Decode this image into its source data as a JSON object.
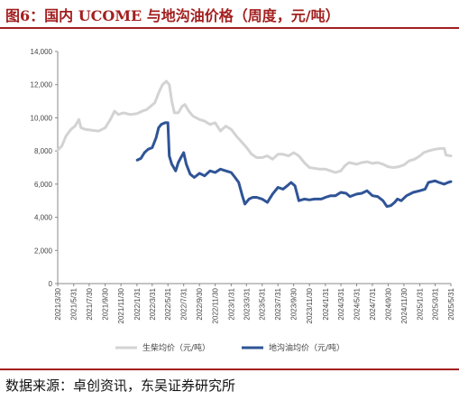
{
  "header": {
    "title": "图6：国内 UCOME 与地沟油价格（周度，元/吨）"
  },
  "footer": {
    "source": "数据来源：卓创资讯，东吴证券研究所"
  },
  "chart_data": {
    "type": "line",
    "title": "图6：国内 UCOME 与地沟油价格（周度，元/吨）",
    "xlabel": "",
    "ylabel": "",
    "ylim": [
      0,
      14000
    ],
    "y_ticks": [
      0,
      2000,
      4000,
      6000,
      8000,
      10000,
      12000,
      14000
    ],
    "y_tick_labels": [
      "0",
      "2,000",
      "4,000",
      "6,000",
      "8,000",
      "10,000",
      "12,000",
      "14,000"
    ],
    "x_range": [
      "2021-03-30",
      "2025-05-31"
    ],
    "x_ticks": [
      "2021-03-30",
      "2021-05-31",
      "2021-07-30",
      "2021-09-30",
      "2021-11-30",
      "2022-01-31",
      "2022-03-31",
      "2022-05-31",
      "2022-07-31",
      "2022-09-30",
      "2022-11-30",
      "2023-01-31",
      "2023-03-31",
      "2023-05-31",
      "2023-07-31",
      "2023-09-30",
      "2023-11-30",
      "2024-01-31",
      "2024-03-31",
      "2024-05-31",
      "2024-07-31",
      "2024-09-30",
      "2024-11-30",
      "2025-01-31",
      "2025-03-31",
      "2025-05-31"
    ],
    "x_tick_labels": [
      "2021/3/30",
      "2021/5/31",
      "2021/7/30",
      "2021/9/30",
      "2021/11/30",
      "2022/1/31",
      "2022/3/31",
      "2022/5/31",
      "2022/7/31",
      "2022/9/30",
      "2022/11/30",
      "2023/1/31",
      "2023/3/31",
      "2023/5/31",
      "2023/7/31",
      "2023/9/30",
      "2023/11/30",
      "2024/1/31",
      "2024/3/31",
      "2024/5/31",
      "2024/7/31",
      "2024/9/30",
      "2024/11/30",
      "2025/1/31",
      "2025/3/31",
      "2025/5/31"
    ],
    "grid": false,
    "legend_position": "bottom",
    "series": [
      {
        "name": "生柴均价（元/吨）",
        "color": "#d3d3d3",
        "points": [
          [
            "2021-03-30",
            8050
          ],
          [
            "2021-04-15",
            8300
          ],
          [
            "2021-05-01",
            8900
          ],
          [
            "2021-05-20",
            9300
          ],
          [
            "2021-06-05",
            9500
          ],
          [
            "2021-06-20",
            9900
          ],
          [
            "2021-06-28",
            9400
          ],
          [
            "2021-07-15",
            9300
          ],
          [
            "2021-08-10",
            9250
          ],
          [
            "2021-09-05",
            9200
          ],
          [
            "2021-09-30",
            9400
          ],
          [
            "2021-10-20",
            9900
          ],
          [
            "2021-11-05",
            10400
          ],
          [
            "2021-11-20",
            10200
          ],
          [
            "2021-12-10",
            10300
          ],
          [
            "2022-01-05",
            10200
          ],
          [
            "2022-01-31",
            10250
          ],
          [
            "2022-02-20",
            10400
          ],
          [
            "2022-03-10",
            10500
          ],
          [
            "2022-03-25",
            10700
          ],
          [
            "2022-04-10",
            10900
          ],
          [
            "2022-04-25",
            11500
          ],
          [
            "2022-05-10",
            12000
          ],
          [
            "2022-05-25",
            12200
          ],
          [
            "2022-06-05",
            12000
          ],
          [
            "2022-06-15",
            11000
          ],
          [
            "2022-06-25",
            10300
          ],
          [
            "2022-07-10",
            10300
          ],
          [
            "2022-07-25",
            10700
          ],
          [
            "2022-08-05",
            10800
          ],
          [
            "2022-08-20",
            10400
          ],
          [
            "2022-09-05",
            10100
          ],
          [
            "2022-09-30",
            9900
          ],
          [
            "2022-10-20",
            9800
          ],
          [
            "2022-11-10",
            9600
          ],
          [
            "2022-11-30",
            9700
          ],
          [
            "2022-12-20",
            9200
          ],
          [
            "2023-01-10",
            9500
          ],
          [
            "2023-01-31",
            9300
          ],
          [
            "2023-02-20",
            8900
          ],
          [
            "2023-03-15",
            8500
          ],
          [
            "2023-04-01",
            8200
          ],
          [
            "2023-04-20",
            7800
          ],
          [
            "2023-05-10",
            7600
          ],
          [
            "2023-05-31",
            7600
          ],
          [
            "2023-06-20",
            7700
          ],
          [
            "2023-07-10",
            7500
          ],
          [
            "2023-07-31",
            7800
          ],
          [
            "2023-08-20",
            7800
          ],
          [
            "2023-09-10",
            7700
          ],
          [
            "2023-09-30",
            7900
          ],
          [
            "2023-10-20",
            7700
          ],
          [
            "2023-11-10",
            7300
          ],
          [
            "2023-11-30",
            7000
          ],
          [
            "2023-12-20",
            6950
          ],
          [
            "2024-01-10",
            6900
          ],
          [
            "2024-01-31",
            6900
          ],
          [
            "2024-02-20",
            6800
          ],
          [
            "2024-03-10",
            6700
          ],
          [
            "2024-03-31",
            6800
          ],
          [
            "2024-04-15",
            7100
          ],
          [
            "2024-05-01",
            7300
          ],
          [
            "2024-05-31",
            7200
          ],
          [
            "2024-06-20",
            7300
          ],
          [
            "2024-07-10",
            7350
          ],
          [
            "2024-07-31",
            7250
          ],
          [
            "2024-08-20",
            7300
          ],
          [
            "2024-09-10",
            7200
          ],
          [
            "2024-09-30",
            7050
          ],
          [
            "2024-10-20",
            7000
          ],
          [
            "2024-11-10",
            7050
          ],
          [
            "2024-11-30",
            7150
          ],
          [
            "2024-12-20",
            7400
          ],
          [
            "2025-01-10",
            7500
          ],
          [
            "2025-01-31",
            7700
          ],
          [
            "2025-02-15",
            7900
          ],
          [
            "2025-03-05",
            8000
          ],
          [
            "2025-03-31",
            8100
          ],
          [
            "2025-04-20",
            8150
          ],
          [
            "2025-05-05",
            8150
          ],
          [
            "2025-05-12",
            7750
          ],
          [
            "2025-05-31",
            7700
          ]
        ]
      },
      {
        "name": "地沟油均价（元/吨）",
        "color": "#2f5496",
        "points": [
          [
            "2022-02-01",
            7450
          ],
          [
            "2022-02-15",
            7550
          ],
          [
            "2022-03-01",
            7900
          ],
          [
            "2022-03-15",
            8100
          ],
          [
            "2022-03-31",
            8200
          ],
          [
            "2022-04-15",
            8800
          ],
          [
            "2022-04-25",
            9400
          ],
          [
            "2022-05-05",
            9600
          ],
          [
            "2022-05-20",
            9700
          ],
          [
            "2022-05-31",
            9700
          ],
          [
            "2022-06-05",
            7700
          ],
          [
            "2022-06-15",
            7200
          ],
          [
            "2022-06-30",
            6800
          ],
          [
            "2022-07-10",
            7300
          ],
          [
            "2022-07-20",
            7600
          ],
          [
            "2022-07-31",
            7900
          ],
          [
            "2022-08-10",
            7200
          ],
          [
            "2022-08-25",
            6600
          ],
          [
            "2022-09-10",
            6400
          ],
          [
            "2022-09-30",
            6650
          ],
          [
            "2022-10-20",
            6500
          ],
          [
            "2022-11-10",
            6800
          ],
          [
            "2022-11-30",
            6700
          ],
          [
            "2022-12-20",
            6900
          ],
          [
            "2023-01-10",
            6800
          ],
          [
            "2023-01-31",
            6700
          ],
          [
            "2023-02-15",
            6400
          ],
          [
            "2023-03-01",
            6100
          ],
          [
            "2023-03-15",
            5300
          ],
          [
            "2023-03-25",
            4800
          ],
          [
            "2023-04-10",
            5100
          ],
          [
            "2023-04-25",
            5200
          ],
          [
            "2023-05-10",
            5200
          ],
          [
            "2023-05-31",
            5100
          ],
          [
            "2023-06-20",
            4900
          ],
          [
            "2023-07-10",
            5400
          ],
          [
            "2023-07-31",
            5800
          ],
          [
            "2023-08-20",
            5700
          ],
          [
            "2023-09-05",
            5900
          ],
          [
            "2023-09-20",
            6100
          ],
          [
            "2023-10-05",
            5900
          ],
          [
            "2023-10-20",
            5000
          ],
          [
            "2023-11-10",
            5100
          ],
          [
            "2023-11-30",
            5050
          ],
          [
            "2023-12-20",
            5100
          ],
          [
            "2024-01-15",
            5100
          ],
          [
            "2024-01-31",
            5200
          ],
          [
            "2024-02-20",
            5300
          ],
          [
            "2024-03-10",
            5300
          ],
          [
            "2024-03-31",
            5500
          ],
          [
            "2024-04-20",
            5450
          ],
          [
            "2024-05-05",
            5250
          ],
          [
            "2024-05-31",
            5400
          ],
          [
            "2024-06-20",
            5450
          ],
          [
            "2024-07-10",
            5600
          ],
          [
            "2024-07-31",
            5300
          ],
          [
            "2024-08-20",
            5250
          ],
          [
            "2024-09-10",
            5000
          ],
          [
            "2024-09-25",
            4650
          ],
          [
            "2024-10-10",
            4700
          ],
          [
            "2024-10-25",
            4900
          ],
          [
            "2024-11-05",
            5100
          ],
          [
            "2024-11-20",
            5000
          ],
          [
            "2024-12-10",
            5300
          ],
          [
            "2025-01-05",
            5500
          ],
          [
            "2025-01-31",
            5600
          ],
          [
            "2025-02-20",
            5700
          ],
          [
            "2025-03-05",
            6100
          ],
          [
            "2025-03-31",
            6200
          ],
          [
            "2025-04-15",
            6100
          ],
          [
            "2025-05-05",
            6000
          ],
          [
            "2025-05-20",
            6100
          ],
          [
            "2025-05-31",
            6150
          ]
        ]
      }
    ]
  }
}
